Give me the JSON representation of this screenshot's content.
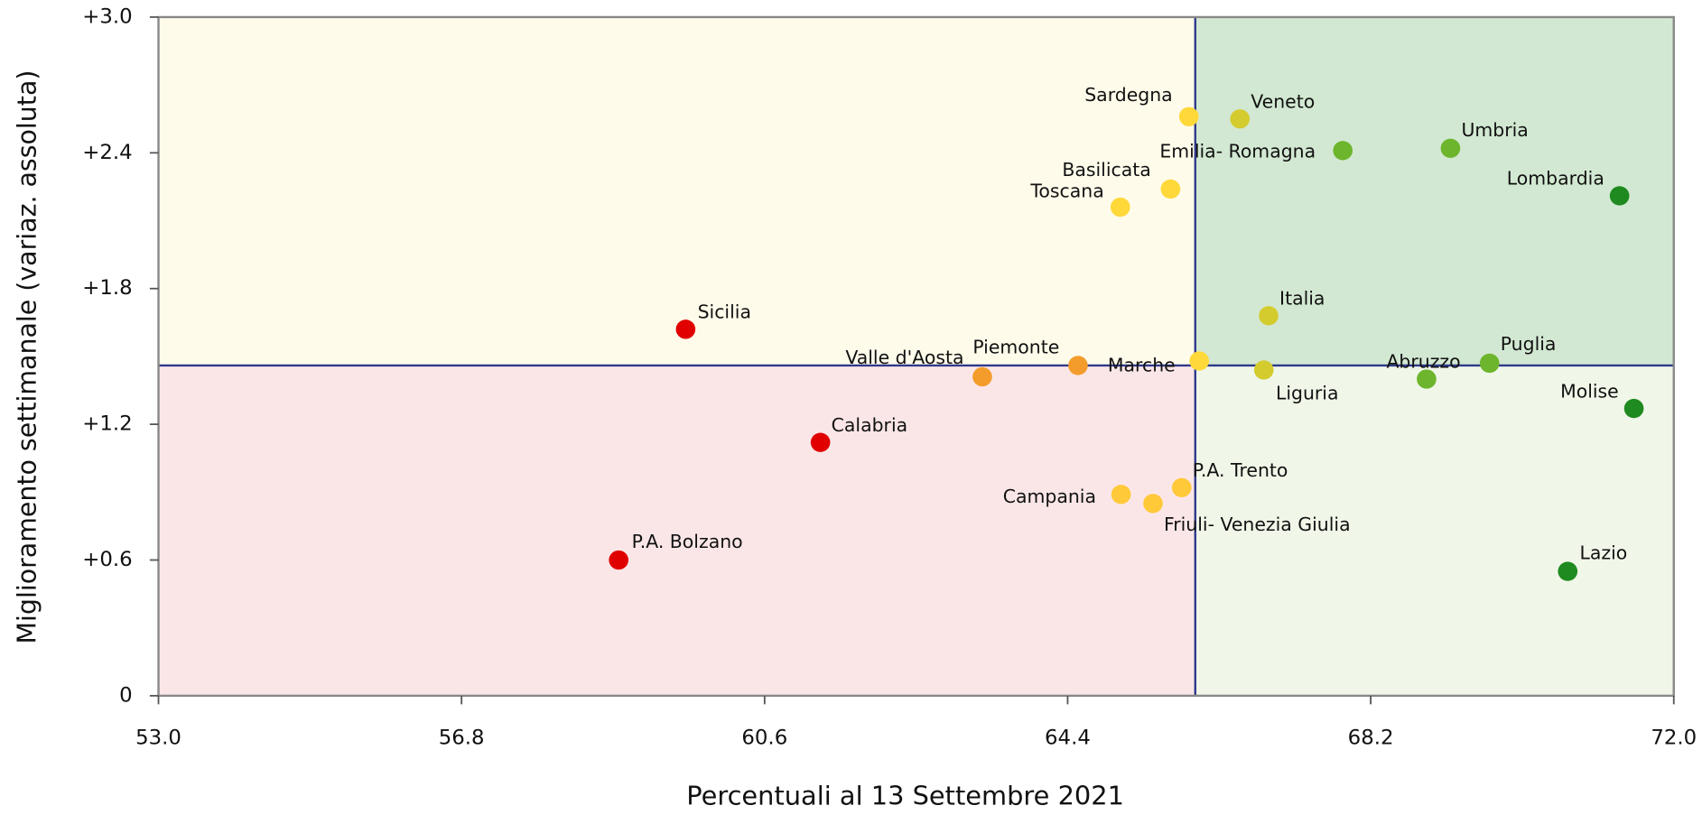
{
  "chart_data": {
    "type": "scatter",
    "xlabel": "Percentuali al 13 Settembre 2021",
    "ylabel": "Miglioramento settimanale (variaz. assoluta)",
    "xlim": [
      53,
      72
    ],
    "ylim": [
      0,
      3
    ],
    "xticks": [
      {
        "value": 53,
        "label": "53.0"
      },
      56.8,
      60.6,
      64.4,
      68.2,
      {
        "value": 72,
        "label": "72.0"
      }
    ],
    "yticks": [
      0,
      {
        "value": 0.6,
        "label": "+0.6"
      },
      {
        "value": 1.2,
        "label": "+1.2"
      },
      {
        "value": 1.8,
        "label": "+1.8"
      },
      {
        "value": 2.4,
        "label": "+2.4"
      },
      {
        "value": 3,
        "label": "+3.0"
      }
    ],
    "x_ref": 66.0,
    "y_ref": 1.46,
    "quadrant_colors": {
      "top_left": "#fffbea",
      "top_right": "#d2e8d2",
      "bottom_left": "#fbe6e7",
      "bottom_right": "#f0f6e8"
    },
    "ref_line_color": "#2e3a8c",
    "labels": [
      "Sardegna",
      "Veneto",
      "Emilia- Romagna",
      "Umbria",
      "Lombardia",
      "Basilicata",
      "Toscana",
      "Italia",
      "Sicilia",
      "Piemonte",
      "Valle d'Aosta",
      "Marche",
      "Liguria",
      "Abruzzo",
      "Puglia",
      "Molise",
      "Calabria",
      "P.A. Trento",
      "Campania",
      "Friuli- Venezia Giulia",
      "P.A. Bolzano",
      "Lazio"
    ],
    "x": [
      65.92,
      66.56,
      67.85,
      69.2,
      71.32,
      65.69,
      65.06,
      66.92,
      59.61,
      64.53,
      63.33,
      66.05,
      66.86,
      68.9,
      69.69,
      71.5,
      61.3,
      65.83,
      65.07,
      65.47,
      58.77,
      70.67
    ],
    "values": [
      2.56,
      2.55,
      2.41,
      2.42,
      2.21,
      2.24,
      2.16,
      1.68,
      1.62,
      1.46,
      1.41,
      1.48,
      1.44,
      1.4,
      1.47,
      1.27,
      1.12,
      0.92,
      0.89,
      0.85,
      0.6,
      0.55
    ],
    "colors": [
      "#ffd83a",
      "#d4cc2e",
      "#6db52c",
      "#6db52c",
      "#1f8a1f",
      "#ffd83a",
      "#ffd83a",
      "#d4cc2e",
      "#e00000",
      "#f39c2b",
      "#f39c2b",
      "#ffd83a",
      "#d4cc2e",
      "#6db52c",
      "#6db52c",
      "#1f8a1f",
      "#e00000",
      "#ffc93a",
      "#ffc93a",
      "#ffc93a",
      "#e00000",
      "#1f8a1f"
    ]
  }
}
